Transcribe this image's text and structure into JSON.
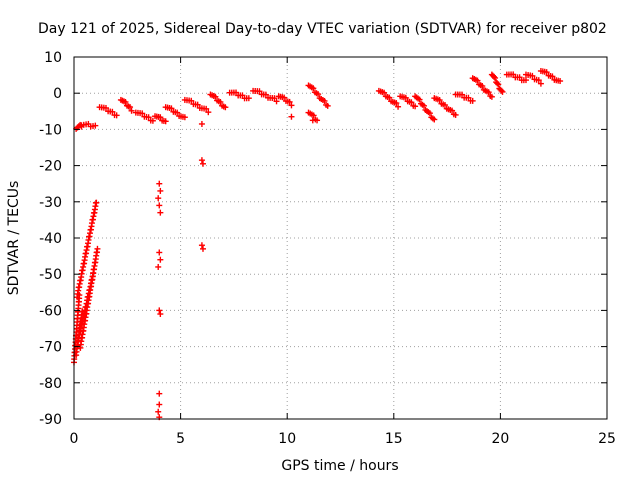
{
  "chart_data": {
    "type": "scatter",
    "title": "Day 121 of 2025, Sidereal Day-to-day VTEC variation (SDTVAR) for receiver p802",
    "xlabel": "GPS time / hours",
    "ylabel": "SDTVAR / TECUs",
    "xlim": [
      0,
      25
    ],
    "ylim": [
      -90,
      10
    ],
    "xticks": [
      0,
      5,
      10,
      15,
      20,
      25
    ],
    "xtick_labels": [
      "0",
      "5",
      "10",
      "15",
      "20",
      "25"
    ],
    "yticks": [
      10,
      0,
      -10,
      -20,
      -30,
      -40,
      -50,
      -60,
      -70,
      -80,
      -90
    ],
    "ytick_labels": [
      "10",
      "0",
      "-10",
      "-20",
      "-30",
      "-40",
      "-50",
      "-60",
      "-70",
      "-80",
      "-90"
    ],
    "grid": true,
    "marker": "+",
    "color": "#ff0000",
    "series": [
      {
        "name": "SDTVAR",
        "segments": [
          {
            "x": [
              0.0,
              0.25
            ],
            "y": [
              -74,
              -56
            ]
          },
          {
            "x": [
              0.15,
              1.05
            ],
            "y": [
              -56,
              -30
            ]
          },
          {
            "x": [
              0.1,
              0.4
            ],
            "y": [
              -72,
              -60
            ]
          },
          {
            "x": [
              0.3,
              1.1
            ],
            "y": [
              -70,
              -43
            ]
          },
          {
            "x": [
              0.2,
              0.9
            ],
            "y": [
              -68,
              -50
            ]
          },
          {
            "x": [
              0.1,
              0.35
            ],
            "y": [
              -9.5,
              -9
            ]
          },
          {
            "x": [
              0.35,
              1.0
            ],
            "y": [
              -8.5,
              -9.2
            ]
          },
          {
            "x": [
              1.2,
              2.0
            ],
            "y": [
              -3.5,
              -6
            ]
          },
          {
            "x": [
              2.2,
              2.7
            ],
            "y": [
              -1.5,
              -4.5
            ]
          },
          {
            "x": [
              2.9,
              3.7
            ],
            "y": [
              -5,
              -7.5
            ]
          },
          {
            "x": [
              3.8,
              4.3
            ],
            "y": [
              -6,
              -8
            ]
          },
          {
            "x": [
              4.3,
              5.2
            ],
            "y": [
              -3.5,
              -7
            ]
          },
          {
            "x": [
              5.2,
              6.3
            ],
            "y": [
              -1.5,
              -5
            ]
          },
          {
            "x": [
              6.4,
              7.1
            ],
            "y": [
              0,
              -4
            ]
          },
          {
            "x": [
              7.3,
              8.2
            ],
            "y": [
              0.5,
              -1.5
            ]
          },
          {
            "x": [
              8.4,
              9.5
            ],
            "y": [
              1,
              -2
            ]
          },
          {
            "x": [
              9.6,
              10.2
            ],
            "y": [
              -0.5,
              -3
            ]
          },
          {
            "x": [
              11.0,
              11.9
            ],
            "y": [
              2.5,
              -3.5
            ]
          },
          {
            "x": [
              11.0,
              11.4
            ],
            "y": [
              -5,
              -7.5
            ]
          },
          {
            "x": [
              14.3,
              15.2
            ],
            "y": [
              1,
              -3.5
            ]
          },
          {
            "x": [
              15.3,
              16.0
            ],
            "y": [
              -0.5,
              -3.5
            ]
          },
          {
            "x": [
              16.0,
              16.9
            ],
            "y": [
              -0.5,
              -7.5
            ]
          },
          {
            "x": [
              16.9,
              17.9
            ],
            "y": [
              -1,
              -6
            ]
          },
          {
            "x": [
              17.9,
              18.7
            ],
            "y": [
              0,
              -2
            ]
          },
          {
            "x": [
              18.7,
              19.6
            ],
            "y": [
              4.5,
              -1
            ]
          },
          {
            "x": [
              19.6,
              20.1
            ],
            "y": [
              5.5,
              0
            ]
          },
          {
            "x": [
              20.3,
              21.2
            ],
            "y": [
              5.5,
              3.5
            ]
          },
          {
            "x": [
              21.2,
              21.9
            ],
            "y": [
              5.5,
              3
            ]
          },
          {
            "x": [
              21.9,
              22.8
            ],
            "y": [
              6.5,
              3
            ]
          }
        ],
        "points": [
          {
            "x": 4.0,
            "y": -25
          },
          {
            "x": 4.05,
            "y": -27
          },
          {
            "x": 3.95,
            "y": -29
          },
          {
            "x": 4.0,
            "y": -31
          },
          {
            "x": 4.05,
            "y": -33
          },
          {
            "x": 4.0,
            "y": -44
          },
          {
            "x": 4.05,
            "y": -46
          },
          {
            "x": 3.95,
            "y": -48
          },
          {
            "x": 4.0,
            "y": -60
          },
          {
            "x": 4.05,
            "y": -61
          },
          {
            "x": 4.0,
            "y": -83
          },
          {
            "x": 4.0,
            "y": -86
          },
          {
            "x": 3.95,
            "y": -88
          },
          {
            "x": 4.0,
            "y": -89.5
          },
          {
            "x": 6.0,
            "y": -18.5
          },
          {
            "x": 6.05,
            "y": -19.5
          },
          {
            "x": 6.0,
            "y": -42
          },
          {
            "x": 6.05,
            "y": -43
          },
          {
            "x": 6.0,
            "y": -8.5
          },
          {
            "x": 10.2,
            "y": -6.5
          },
          {
            "x": 11.2,
            "y": -7.5
          }
        ]
      }
    ]
  }
}
